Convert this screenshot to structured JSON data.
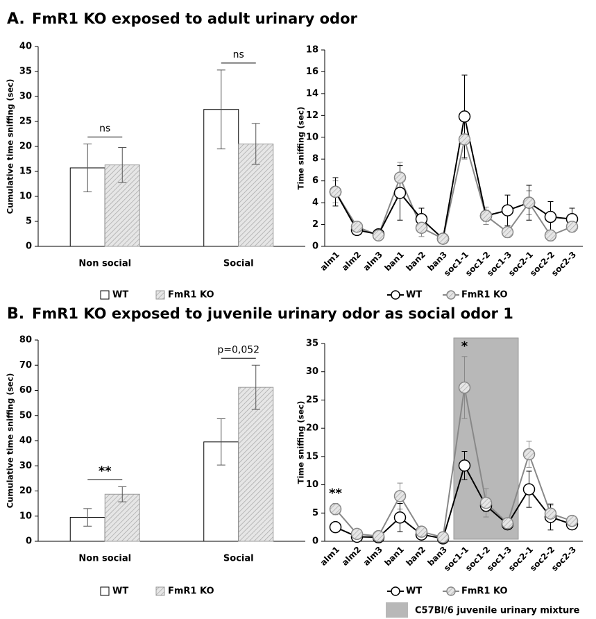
{
  "panels": [
    {
      "letter": "A.",
      "title": "FmR1 KO exposed to adult urinary odor"
    },
    {
      "letter": "B.",
      "title": "FmR1 KO exposed to juvenile urinary odor as social odor 1"
    }
  ],
  "chart_data": [
    {
      "type": "bar",
      "y_label": "Cumulative time sniffing (sec)",
      "categories": [
        "Non social",
        "Social"
      ],
      "series": [
        {
          "name": "WT",
          "color": "#ffffff",
          "values": [
            15.7,
            27.4
          ],
          "errors": [
            4.8,
            7.9
          ]
        },
        {
          "name": "FmR1 KO",
          "color": "#e2e2e2",
          "values": [
            16.3,
            20.5
          ],
          "errors": [
            3.5,
            4.1
          ]
        }
      ],
      "ylim": [
        0,
        40
      ],
      "yticks": [
        0,
        5,
        10,
        15,
        20,
        25,
        30,
        35,
        40
      ],
      "annotations": [
        {
          "text": "ns",
          "category": 0
        },
        {
          "text": "ns",
          "category": 1
        }
      ]
    },
    {
      "type": "line",
      "y_label": "Time sniffing (sec)",
      "categories": [
        "alm1",
        "alm2",
        "alm3",
        "ban1",
        "ban2",
        "ban3",
        "soc1-1",
        "soc1-2",
        "soc1-3",
        "soc2-1",
        "soc2-2",
        "soc2-3"
      ],
      "series": [
        {
          "name": "WT",
          "color": "#000000",
          "values": [
            5.0,
            1.5,
            1.1,
            4.9,
            2.5,
            0.7,
            11.9,
            2.8,
            3.3,
            4.0,
            2.7,
            2.5
          ],
          "errors": [
            1.3,
            0.4,
            0.3,
            2.5,
            1.0,
            0.2,
            3.8,
            0.5,
            1.4,
            1.6,
            1.4,
            1.0
          ]
        },
        {
          "name": "FmR1 KO",
          "color": "#888888",
          "values": [
            5.0,
            1.8,
            1.0,
            6.3,
            1.7,
            0.7,
            9.8,
            2.8,
            1.3,
            4.0,
            1.0,
            1.8
          ],
          "errors": [
            1.0,
            0.4,
            0.3,
            1.4,
            0.8,
            0.2,
            1.8,
            0.8,
            0.5,
            1.1,
            0.5,
            0.5
          ]
        }
      ],
      "ylim": [
        0,
        18
      ],
      "yticks": [
        0,
        2,
        4,
        6,
        8,
        10,
        12,
        14,
        16,
        18
      ]
    },
    {
      "type": "bar",
      "y_label": "Cumulative time sniffing (sec)",
      "categories": [
        "Non social",
        "Social"
      ],
      "series": [
        {
          "name": "WT",
          "color": "#ffffff",
          "values": [
            9.5,
            39.5
          ],
          "errors": [
            3.5,
            9.2
          ]
        },
        {
          "name": "FmR1 KO",
          "color": "#e2e2e2",
          "values": [
            18.7,
            61.2
          ],
          "errors": [
            3.0,
            8.8
          ]
        }
      ],
      "ylim": [
        0,
        80
      ],
      "yticks": [
        0,
        10,
        20,
        30,
        40,
        50,
        60,
        70,
        80
      ],
      "annotations": [
        {
          "text": "**",
          "category": 0
        },
        {
          "text": "p=0,052",
          "category": 1
        }
      ]
    },
    {
      "type": "line",
      "y_label": "Time sniffing (sec)",
      "categories": [
        "alm1",
        "alm2",
        "alm3",
        "ban1",
        "ban2",
        "ban3",
        "soc1-1",
        "soc1-2",
        "soc1-3",
        "soc2-1",
        "soc2-2",
        "soc2-3"
      ],
      "series": [
        {
          "name": "WT",
          "color": "#000000",
          "values": [
            2.5,
            0.8,
            0.7,
            4.2,
            1.2,
            0.5,
            13.4,
            6.3,
            3.0,
            9.2,
            4.3,
            3.0
          ],
          "errors": [
            0.5,
            0.4,
            0.3,
            2.5,
            0.6,
            0.2,
            2.5,
            1.0,
            0.8,
            3.2,
            2.3,
            0.5
          ]
        },
        {
          "name": "FmR1 KO",
          "color": "#888888",
          "values": [
            5.7,
            1.3,
            0.9,
            8.0,
            1.7,
            0.7,
            27.2,
            6.8,
            3.2,
            15.4,
            4.9,
            3.6
          ],
          "errors": [
            1.0,
            0.6,
            0.4,
            2.3,
            0.5,
            0.3,
            5.5,
            2.5,
            0.6,
            2.3,
            1.5,
            0.6
          ]
        }
      ],
      "ylim": [
        0,
        35
      ],
      "yticks": [
        0,
        5,
        10,
        15,
        20,
        25,
        30,
        35
      ],
      "annotations": [
        {
          "text": "**",
          "category": 0
        },
        {
          "text": "*",
          "category": 6
        }
      ],
      "highlight": {
        "label": "C57Bl/6 juvenile urinary mixture",
        "from": 6,
        "to": 8,
        "color": "#b8b8b8"
      }
    }
  ]
}
